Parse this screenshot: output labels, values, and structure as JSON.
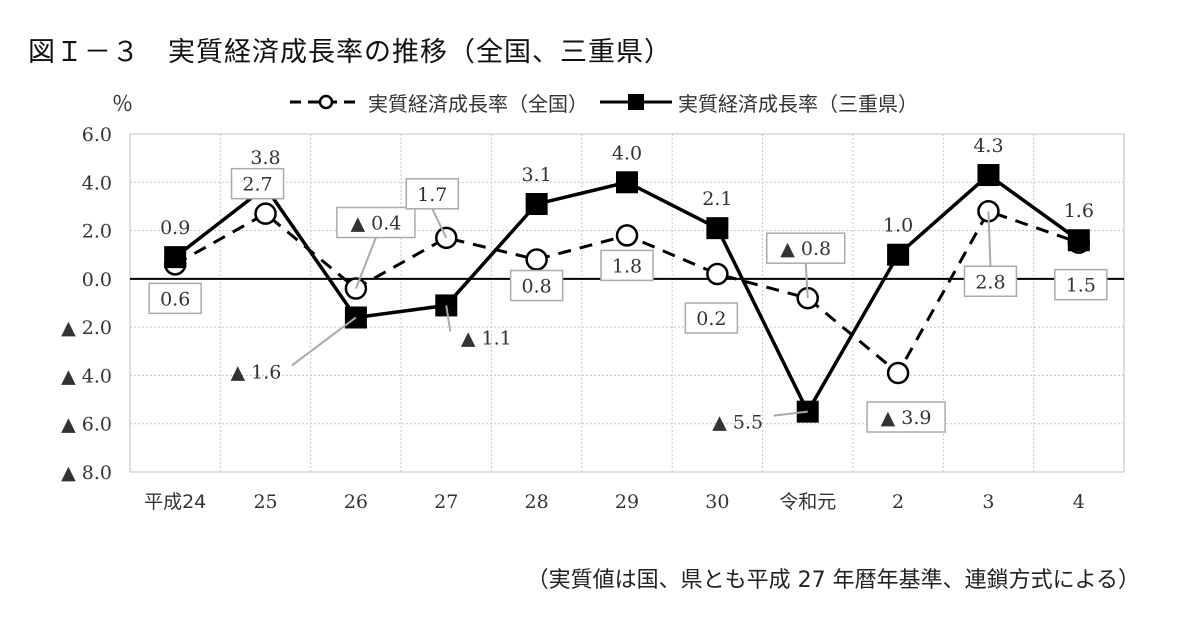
{
  "figure": {
    "title": "図Ｉ－３　実質経済成長率の推移（全国、三重県）",
    "y_unit": "％",
    "note": "（実質値は国、県とも平成 27 年暦年基準、連鎖方式による）"
  },
  "chart_data": {
    "type": "line",
    "categories": [
      "平成24",
      "25",
      "26",
      "27",
      "28",
      "29",
      "30",
      "令和元",
      "2",
      "3",
      "4"
    ],
    "ylim": [
      -8.0,
      6.0
    ],
    "y_ticks": [
      6.0,
      4.0,
      2.0,
      0.0,
      -2.0,
      -4.0,
      -6.0,
      -8.0
    ],
    "y_tick_labels": [
      "6.0",
      "4.0",
      "2.0",
      "0.0",
      "▲ 2.0",
      "▲ 4.0",
      "▲ 6.0",
      "▲ 8.0"
    ],
    "grid": true,
    "legend_position": "top",
    "series": [
      {
        "name": "実質経済成長率（全国）",
        "style": "dashed-circle",
        "color": "#000000",
        "values": [
          0.6,
          2.7,
          -0.4,
          1.7,
          0.8,
          1.8,
          0.2,
          -0.8,
          -3.9,
          2.8,
          1.5
        ],
        "labels": [
          "0.6",
          "2.7",
          "▲ 0.4",
          "1.7",
          "0.8",
          "1.8",
          "0.2",
          "▲ 0.8",
          "▲ 3.9",
          "2.8",
          "1.5"
        ]
      },
      {
        "name": "実質経済成長率（三重県）",
        "style": "solid-square",
        "color": "#000000",
        "values": [
          0.9,
          3.8,
          -1.6,
          -1.1,
          3.1,
          4.0,
          2.1,
          -5.5,
          1.0,
          4.3,
          1.6
        ],
        "labels": [
          "0.9",
          "3.8",
          "▲ 1.6",
          "▲ 1.1",
          "3.1",
          "4.0",
          "2.1",
          "▲ 5.5",
          "1.0",
          "4.3",
          "1.6"
        ]
      }
    ]
  }
}
